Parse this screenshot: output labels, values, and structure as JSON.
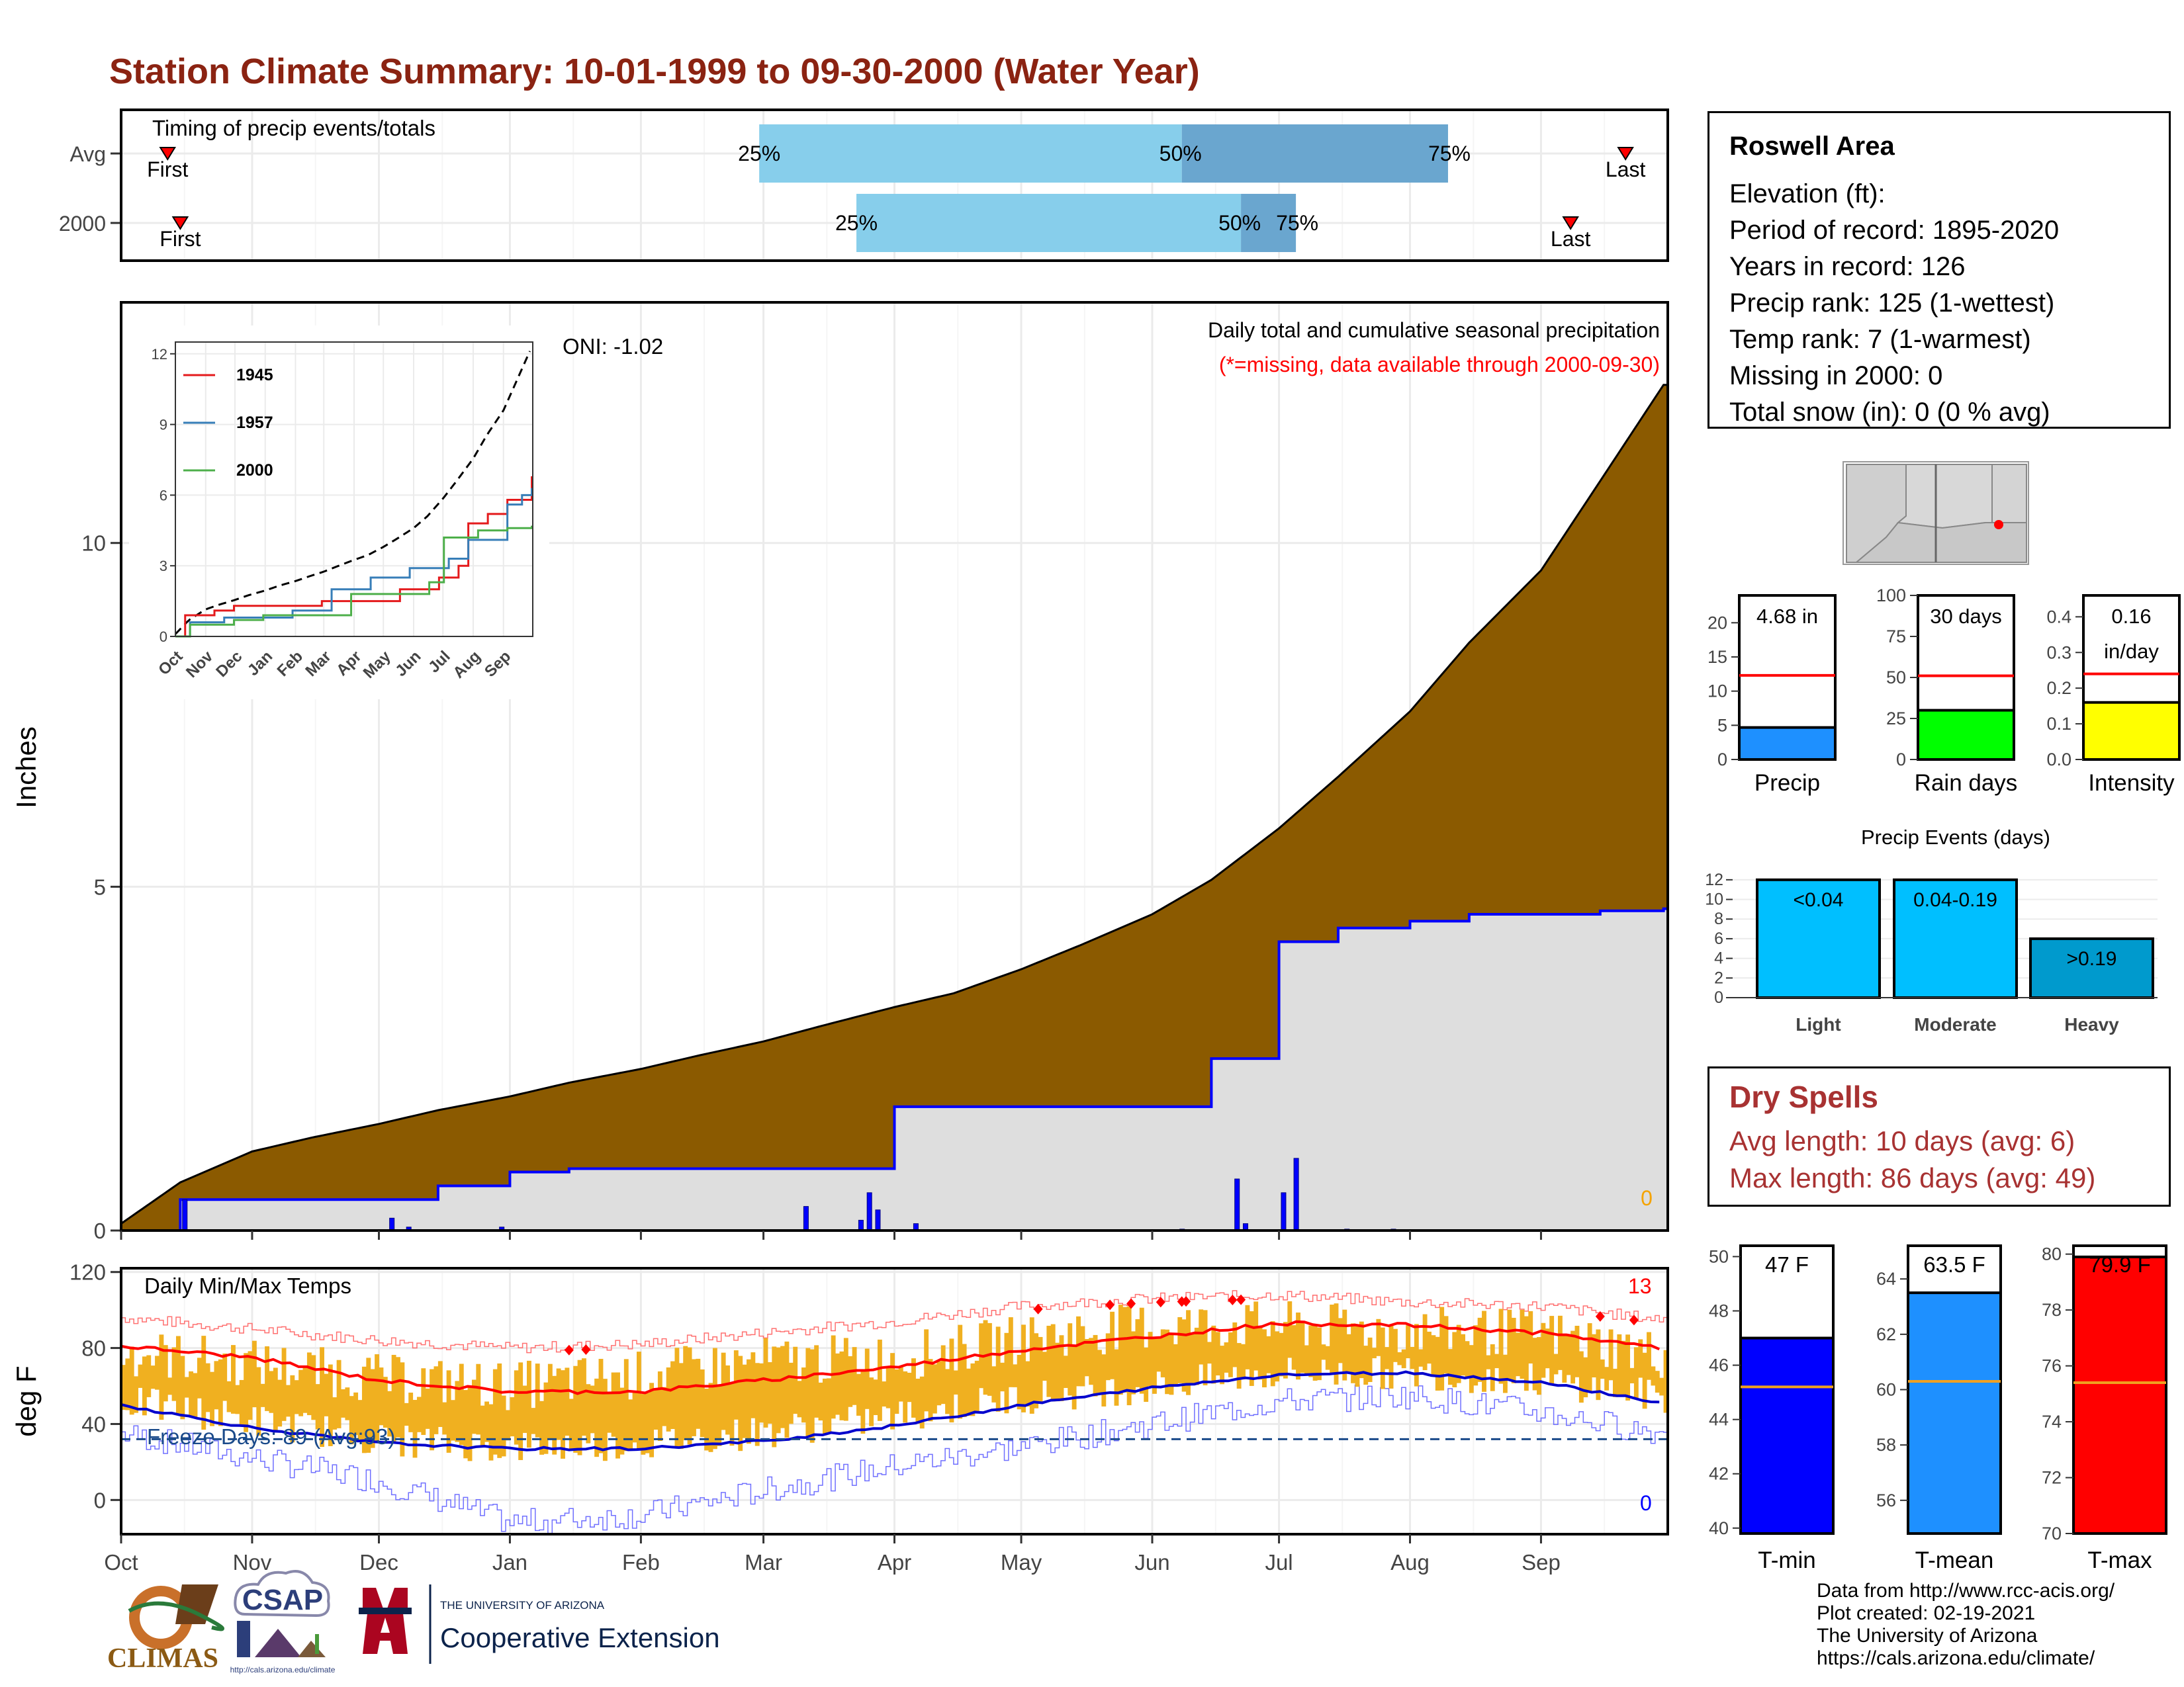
{
  "title": "Station Climate Summary: 10-01-1999 to 09-30-2000 (Water Year)",
  "colors": {
    "title": "#8b2312",
    "precip_fill": "#8b5a00",
    "normal_fill": "#dedede",
    "q_light": "#87ceeb",
    "q_dark": "#6aa6cf",
    "daily_bar": "#f0b020",
    "red": "#ff0000",
    "blue": "#0000ff",
    "freeze": "#1a4a8a"
  },
  "timing": {
    "label": "Timing of precip events/totals",
    "rows": [
      {
        "name": "Avg",
        "first_label": "First",
        "last_label": "Last",
        "first_day": 11,
        "last_day": 356,
        "q25_day": 151,
        "q50_day": 251,
        "q75_day": 314,
        "q25_label": "25%",
        "q50_label": "50%",
        "q75_label": "75%"
      },
      {
        "name": "2000",
        "first_label": "First",
        "last_label": "Last",
        "first_day": 14,
        "last_day": 343,
        "q25_day": 174,
        "q50_day": 265,
        "q75_day": 278,
        "q25_label": "25%",
        "q50_label": "50%",
        "q75_label": "75%"
      }
    ]
  },
  "months": [
    "Oct",
    "Nov",
    "Dec",
    "Jan",
    "Feb",
    "Mar",
    "Apr",
    "May",
    "Jun",
    "Jul",
    "Aug",
    "Sep"
  ],
  "precip_panel": {
    "ylabel": "Inches",
    "y_ticks": [
      0,
      5,
      10
    ],
    "ylim": [
      0,
      13.5
    ],
    "oni": "ONI: -1.02",
    "header": "Daily total and cumulative seasonal precipitation",
    "note": "(*=missing, data available through 2000-09-30)",
    "missing_count": "0"
  },
  "inset": {
    "y_ticks": [
      "0",
      "3",
      "6",
      "9",
      "12"
    ],
    "months": [
      "Oct",
      "Nov",
      "Dec",
      "Jan",
      "Feb",
      "Mar",
      "Apr",
      "May",
      "Jun",
      "Jul",
      "Aug",
      "Sep"
    ],
    "legend": [
      {
        "name": "1945",
        "color": "#e41a1c"
      },
      {
        "name": "1957",
        "color": "#377eb8"
      },
      {
        "name": "2000",
        "color": "#4daf4a"
      }
    ]
  },
  "temp_panel": {
    "ylabel": "deg F",
    "label": "Daily Min/Max Temps",
    "y_ticks": [
      0,
      40,
      80,
      120
    ],
    "ylim": [
      -18,
      122
    ],
    "freeze_label": "Freeze Days: 89 (Avg:93)",
    "record_highs": "13",
    "record_lows": "0",
    "freeze_line": 32
  },
  "station": {
    "name": "Roswell Area",
    "lines": [
      "Elevation (ft):",
      "Period of record: 1895-2020",
      "Years in record: 126",
      "Precip rank: 125 (1-wettest)",
      "Temp rank: 7 (1-warmest)",
      "Missing in 2000: 0",
      "Total snow (in): 0 (0 % avg)"
    ]
  },
  "summary_bars": [
    {
      "name": "Precip",
      "value": 4.68,
      "avg": 12.3,
      "label": "4.68 in",
      "ymax": 24,
      "ticks": [
        "0",
        "5",
        "10",
        "15",
        "20"
      ],
      "color": "#1e90ff"
    },
    {
      "name": "Rain days",
      "value": 30,
      "avg": 51,
      "label": "30 days",
      "ymax": 100,
      "ticks": [
        "0",
        "25",
        "50",
        "75",
        "100"
      ],
      "color": "#00ff00"
    },
    {
      "name": "Intensity",
      "value": 0.16,
      "avg": 0.24,
      "label": "0.16",
      "label2": "in/day",
      "ymax": 0.46,
      "ticks": [
        "0.0",
        "0.1",
        "0.2",
        "0.3",
        "0.4"
      ],
      "color": "#ffff00"
    }
  ],
  "events": {
    "title": "Precip Events (days)",
    "ticks": [
      "0",
      "2",
      "4",
      "6",
      "8",
      "10",
      "12"
    ],
    "bars": [
      {
        "name": "Light",
        "value": 12,
        "label": "<0.04",
        "color": "#00bfff"
      },
      {
        "name": "Moderate",
        "value": 12,
        "label": "0.04-0.19",
        "color": "#00bfff"
      },
      {
        "name": "Heavy",
        "value": 6,
        "label": ">0.19",
        "color": "#009acd"
      }
    ]
  },
  "dry_spells": {
    "title": "Dry Spells",
    "avg_line": "Avg length: 10 days (avg: 6)",
    "max_line": "Max length: 86 days (avg: 49)"
  },
  "temp_bars": [
    {
      "name": "T-min",
      "value": 47,
      "avg": 45.2,
      "label": "47 F",
      "ymin": 39.8,
      "ymax": 50.4,
      "ticks": [
        "40",
        "42",
        "44",
        "46",
        "48",
        "50"
      ],
      "color": "#0000ff"
    },
    {
      "name": "T-mean",
      "value": 63.5,
      "avg": 60.3,
      "label": "63.5 F",
      "ymin": 54.8,
      "ymax": 65.2,
      "ticks": [
        "56",
        "58",
        "60",
        "62",
        "64"
      ],
      "color": "#1e90ff"
    },
    {
      "name": "T-max",
      "value": 79.9,
      "avg": 75.4,
      "label": "79.9 F",
      "ymin": 70,
      "ymax": 80.3,
      "ticks": [
        "70",
        "72",
        "74",
        "76",
        "78",
        "80"
      ],
      "color": "#ff0000"
    }
  ],
  "logos": {
    "climas": "CLIMAS",
    "csap": "CSAP",
    "csap_url": "http://cals.arizona.edu/climate",
    "ua_small": "THE UNIVERSITY OF ARIZONA",
    "ua_big": "Cooperative Extension"
  },
  "credits": [
    "Data from http://www.rcc-acis.org/",
    "Plot created: 02-19-2021",
    "The University of Arizona",
    "https://cals.arizona.edu/climate/"
  ],
  "chart_data": [
    {
      "type": "bar",
      "title": "Timing of precip events/totals",
      "categories": [
        "Avg",
        "2000"
      ],
      "series": [
        {
          "name": "25%",
          "values": [
            151,
            174
          ]
        },
        {
          "name": "50%",
          "values": [
            251,
            265
          ]
        },
        {
          "name": "75%",
          "values": [
            314,
            278
          ]
        }
      ]
    },
    {
      "type": "area",
      "title": "Daily total and cumulative seasonal precipitation",
      "xlabel": "",
      "ylabel": "Inches",
      "ylim": [
        0,
        13.5
      ],
      "x": [
        "10-01",
        "10-15",
        "11-01",
        "11-15",
        "12-01",
        "12-15",
        "01-01",
        "01-15",
        "02-01",
        "02-15",
        "03-01",
        "03-15",
        "04-01",
        "04-15",
        "05-01",
        "05-15",
        "06-01",
        "06-15",
        "07-01",
        "07-15",
        "08-01",
        "08-15",
        "09-01",
        "09-15",
        "09-30"
      ],
      "series": [
        {
          "name": "normal_cumulative",
          "values": [
            0.1,
            0.7,
            1.15,
            1.35,
            1.55,
            1.75,
            1.95,
            2.15,
            2.35,
            2.55,
            2.75,
            2.98,
            3.25,
            3.45,
            3.8,
            4.15,
            4.6,
            5.1,
            5.85,
            6.6,
            7.55,
            8.55,
            9.6,
            10.9,
            12.3
          ]
        },
        {
          "name": "2000_cumulative",
          "values": [
            0.0,
            0.45,
            0.45,
            0.45,
            0.45,
            0.65,
            0.85,
            0.9,
            0.9,
            0.9,
            0.9,
            0.9,
            1.8,
            1.8,
            1.8,
            1.8,
            1.8,
            2.5,
            4.2,
            4.4,
            4.5,
            4.6,
            4.6,
            4.65,
            4.68
          ]
        }
      ],
      "daily_precip": [
        {
          "day": 15,
          "inches": 0.45
        },
        {
          "day": 64,
          "inches": 0.18
        },
        {
          "day": 68,
          "inches": 0.05
        },
        {
          "day": 90,
          "inches": 0.05
        },
        {
          "day": 162,
          "inches": 0.35
        },
        {
          "day": 175,
          "inches": 0.15
        },
        {
          "day": 177,
          "inches": 0.55
        },
        {
          "day": 179,
          "inches": 0.3
        },
        {
          "day": 188,
          "inches": 0.1
        },
        {
          "day": 251,
          "inches": 0.02
        },
        {
          "day": 264,
          "inches": 0.75
        },
        {
          "day": 266,
          "inches": 0.1
        },
        {
          "day": 275,
          "inches": 0.55
        },
        {
          "day": 278,
          "inches": 1.05
        },
        {
          "day": 290,
          "inches": 0.02
        },
        {
          "day": 301,
          "inches": 0.02
        }
      ]
    },
    {
      "type": "line",
      "title": "Daily Min/Max Temps",
      "ylabel": "deg F",
      "ylim": [
        -18,
        122
      ],
      "x": [
        "10-01",
        "11-01",
        "12-01",
        "01-01",
        "02-01",
        "03-01",
        "04-01",
        "05-01",
        "06-01",
        "07-01",
        "08-01",
        "09-01",
        "09-30"
      ],
      "series": [
        {
          "name": "normal_max",
          "values": [
            81,
            75,
            63,
            57,
            57,
            63,
            70,
            79,
            86,
            93,
            92,
            88,
            80
          ]
        },
        {
          "name": "normal_min",
          "values": [
            50,
            38,
            30,
            27,
            27,
            31,
            39,
            50,
            59,
            66,
            67,
            62,
            51
          ]
        },
        {
          "name": "record_max",
          "values": [
            96,
            90,
            84,
            80,
            82,
            88,
            94,
            102,
            106,
            108,
            104,
            102,
            95
          ]
        },
        {
          "name": "record_min",
          "values": [
            35,
            22,
            10,
            -12,
            -8,
            5,
            18,
            28,
            40,
            52,
            55,
            46,
            35
          ]
        },
        {
          "name": "daily_max_2000",
          "values": [
            78,
            72,
            64,
            60,
            66,
            73,
            75,
            85,
            92,
            92,
            89,
            88,
            76
          ]
        },
        {
          "name": "daily_min_2000",
          "values": [
            52,
            42,
            32,
            28,
            30,
            36,
            44,
            54,
            60,
            67,
            67,
            63,
            54
          ]
        }
      ]
    },
    {
      "type": "bar",
      "title": "Precip Events (days)",
      "categories": [
        "Light",
        "Moderate",
        "Heavy"
      ],
      "values": [
        12,
        12,
        6
      ]
    },
    {
      "type": "bar",
      "categories": [
        "Precip",
        "Rain days",
        "Intensity"
      ],
      "values": [
        4.68,
        30,
        0.16
      ]
    },
    {
      "type": "bar",
      "categories": [
        "T-min",
        "T-mean",
        "T-max"
      ],
      "values": [
        47,
        63.5,
        79.9
      ]
    }
  ]
}
